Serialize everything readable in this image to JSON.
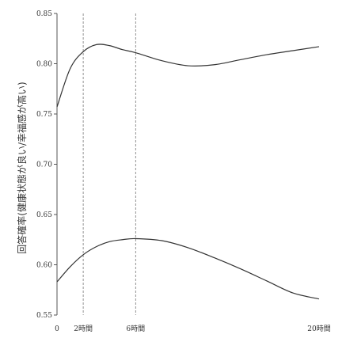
{
  "chart_data": {
    "type": "line",
    "title": "",
    "xlabel": "",
    "ylabel": "回答確率(健康状態が良い/幸福感が高い)",
    "xlim": [
      0,
      20
    ],
    "ylim": [
      0.55,
      0.85
    ],
    "x_ticks": [
      {
        "value": 0,
        "label": "0"
      },
      {
        "value": 2,
        "label": "2時間"
      },
      {
        "value": 6,
        "label": "6時間"
      },
      {
        "value": 20,
        "label": "20時間"
      }
    ],
    "y_ticks": [
      {
        "value": 0.55,
        "label": "0.55"
      },
      {
        "value": 0.6,
        "label": "0.60"
      },
      {
        "value": 0.65,
        "label": "0.65"
      },
      {
        "value": 0.7,
        "label": "0.70"
      },
      {
        "value": 0.75,
        "label": "0.75"
      },
      {
        "value": 0.8,
        "label": "0.80"
      },
      {
        "value": 0.85,
        "label": "0.85"
      }
    ],
    "reference_lines_x": [
      2,
      6
    ],
    "series": [
      {
        "x": [
          0,
          1,
          2,
          3,
          4,
          5,
          6,
          8,
          10,
          12,
          14,
          16,
          18,
          20
        ],
        "y": [
          0.757,
          0.795,
          0.812,
          0.819,
          0.818,
          0.814,
          0.811,
          0.803,
          0.798,
          0.799,
          0.804,
          0.809,
          0.813,
          0.817
        ]
      },
      {
        "x": [
          0,
          1,
          2,
          3,
          4,
          5,
          6,
          8,
          10,
          12,
          14,
          16,
          18,
          20
        ],
        "y": [
          0.583,
          0.598,
          0.61,
          0.618,
          0.623,
          0.625,
          0.626,
          0.624,
          0.617,
          0.607,
          0.596,
          0.584,
          0.572,
          0.566
        ]
      }
    ]
  }
}
